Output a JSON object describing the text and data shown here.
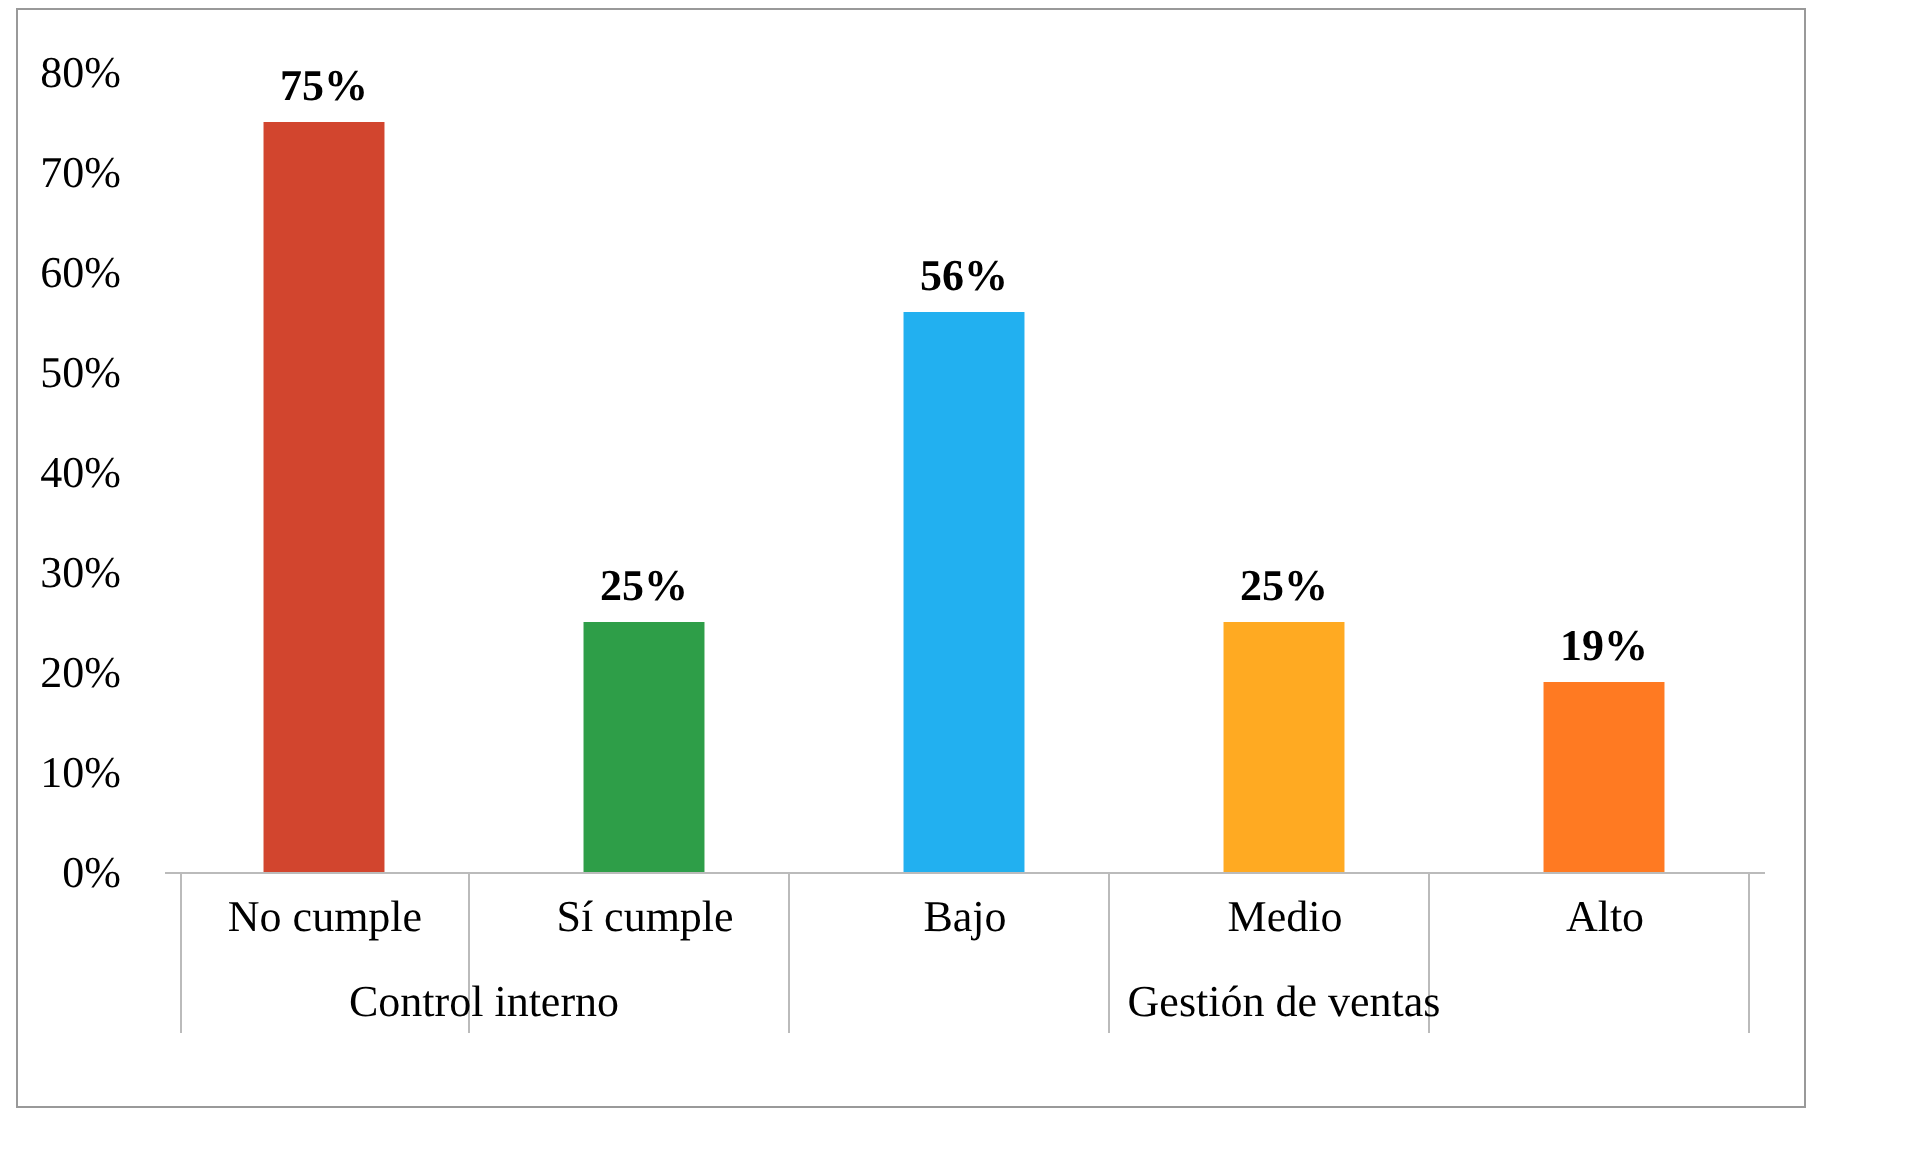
{
  "chart_data": {
    "type": "bar",
    "categories": [
      "No cumple",
      "Sí cumple",
      "Bajo",
      "Medio",
      "Alto"
    ],
    "values": [
      75,
      25,
      56,
      25,
      19
    ],
    "colors": [
      "#d2452e",
      "#2e9e48",
      "#22b0f0",
      "#ffaa22",
      "#ff7a22"
    ],
    "value_labels": [
      "75%",
      "25%",
      "56%",
      "25%",
      "19%"
    ],
    "ylim": [
      0,
      80
    ],
    "yticks": [
      {
        "value": 0,
        "label": "0%"
      },
      {
        "value": 10,
        "label": "10%"
      },
      {
        "value": 20,
        "label": "20%"
      },
      {
        "value": 30,
        "label": "30%"
      },
      {
        "value": 40,
        "label": "40%"
      },
      {
        "value": 50,
        "label": "50%"
      },
      {
        "value": 60,
        "label": "60%"
      },
      {
        "value": 70,
        "label": "70%"
      },
      {
        "value": 80,
        "label": "80%"
      }
    ],
    "annotations": [
      "Control interno",
      "Gestión de ventas"
    ]
  }
}
